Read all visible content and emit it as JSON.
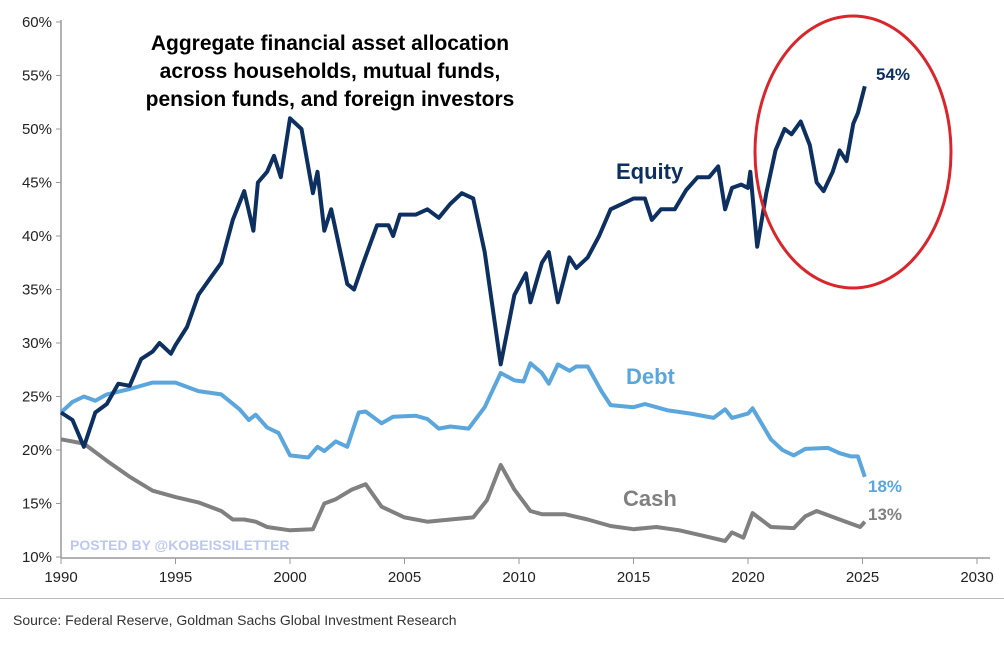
{
  "chart_data": {
    "type": "line",
    "title": "Aggregate financial asset allocation across households, mutual funds, pension funds, and foreign investors",
    "title_lines": [
      "Aggregate financial asset allocation",
      "across households, mutual funds,",
      "pension funds, and foreign investors"
    ],
    "xlabel": "",
    "ylabel": "",
    "xlim": [
      1990,
      2030
    ],
    "ylim": [
      10,
      60
    ],
    "x_ticks": [
      "1990",
      "1995",
      "2000",
      "2005",
      "2010",
      "2015",
      "2020",
      "2025",
      "2030"
    ],
    "y_ticks": [
      "10%",
      "15%",
      "20%",
      "25%",
      "30%",
      "35%",
      "40%",
      "45%",
      "50%",
      "55%",
      "60%"
    ],
    "grid": false,
    "series": [
      {
        "name": "Equity",
        "color": "#0d3060",
        "end_label": "54%",
        "points": [
          [
            1990,
            23.5
          ],
          [
            1990.5,
            22.8
          ],
          [
            1991,
            20.3
          ],
          [
            1991.5,
            23.5
          ],
          [
            1992,
            24.3
          ],
          [
            1992.5,
            26.2
          ],
          [
            1993,
            26
          ],
          [
            1993.5,
            28.5
          ],
          [
            1994,
            29.2
          ],
          [
            1994.3,
            30
          ],
          [
            1994.8,
            29
          ],
          [
            1995,
            29.8
          ],
          [
            1995.5,
            31.5
          ],
          [
            1996,
            34.5
          ],
          [
            1996.5,
            36
          ],
          [
            1997,
            37.5
          ],
          [
            1997.5,
            41.5
          ],
          [
            1998,
            44.2
          ],
          [
            1998.4,
            40.5
          ],
          [
            1998.6,
            45
          ],
          [
            1999,
            46
          ],
          [
            1999.3,
            47.5
          ],
          [
            1999.6,
            45.5
          ],
          [
            2000,
            51
          ],
          [
            2000.5,
            50
          ],
          [
            2001,
            44
          ],
          [
            2001.2,
            46
          ],
          [
            2001.5,
            40.5
          ],
          [
            2001.8,
            42.5
          ],
          [
            2002.5,
            35.5
          ],
          [
            2002.8,
            35
          ],
          [
            2003.2,
            37.5
          ],
          [
            2003.8,
            41
          ],
          [
            2004.3,
            41
          ],
          [
            2004.5,
            40
          ],
          [
            2004.8,
            42
          ],
          [
            2005.5,
            42
          ],
          [
            2006,
            42.5
          ],
          [
            2006.5,
            41.7
          ],
          [
            2007,
            43
          ],
          [
            2007.5,
            44
          ],
          [
            2008,
            43.5
          ],
          [
            2008.5,
            38.5
          ],
          [
            2009.2,
            28
          ],
          [
            2009.8,
            34.5
          ],
          [
            2010.3,
            36.5
          ],
          [
            2010.5,
            33.8
          ],
          [
            2011,
            37.5
          ],
          [
            2011.3,
            38.5
          ],
          [
            2011.7,
            33.8
          ],
          [
            2012.2,
            38
          ],
          [
            2012.5,
            37
          ],
          [
            2013,
            38
          ],
          [
            2013.5,
            40
          ],
          [
            2014,
            42.5
          ],
          [
            2014.5,
            43
          ],
          [
            2015,
            43.5
          ],
          [
            2015.5,
            43.5
          ],
          [
            2015.8,
            41.5
          ],
          [
            2016.2,
            42.5
          ],
          [
            2016.8,
            42.5
          ],
          [
            2017.3,
            44.3
          ],
          [
            2017.8,
            45.5
          ],
          [
            2018.3,
            45.5
          ],
          [
            2018.7,
            46.5
          ],
          [
            2019,
            42.5
          ],
          [
            2019.3,
            44.5
          ],
          [
            2019.7,
            44.8
          ],
          [
            2020,
            44.5
          ],
          [
            2020.1,
            46
          ],
          [
            2020.4,
            39
          ],
          [
            2020.8,
            44
          ],
          [
            2021.2,
            48
          ],
          [
            2021.6,
            50
          ],
          [
            2021.9,
            49.5
          ],
          [
            2022.3,
            50.7
          ],
          [
            2022.7,
            48.5
          ],
          [
            2023,
            45
          ],
          [
            2023.3,
            44.2
          ],
          [
            2023.7,
            46
          ],
          [
            2024,
            48
          ],
          [
            2024.3,
            47
          ],
          [
            2024.6,
            50.5
          ],
          [
            2024.8,
            51.5
          ],
          [
            2025.1,
            54
          ]
        ]
      },
      {
        "name": "Debt",
        "color": "#5aa6dd",
        "end_label": "18%",
        "points": [
          [
            1990,
            23.5
          ],
          [
            1990.5,
            24.5
          ],
          [
            1991,
            25
          ],
          [
            1991.5,
            24.6
          ],
          [
            1992,
            25.2
          ],
          [
            1993,
            25.7
          ],
          [
            1994,
            26.3
          ],
          [
            1995,
            26.3
          ],
          [
            1996,
            25.5
          ],
          [
            1997,
            25.2
          ],
          [
            1997.8,
            23.8
          ],
          [
            1998.2,
            22.8
          ],
          [
            1998.5,
            23.3
          ],
          [
            1999,
            22.1
          ],
          [
            1999.5,
            21.6
          ],
          [
            2000,
            19.5
          ],
          [
            2000.8,
            19.3
          ],
          [
            2001.2,
            20.3
          ],
          [
            2001.5,
            19.9
          ],
          [
            2002,
            20.8
          ],
          [
            2002.5,
            20.3
          ],
          [
            2003,
            23.5
          ],
          [
            2003.3,
            23.6
          ],
          [
            2004,
            22.5
          ],
          [
            2004.5,
            23.1
          ],
          [
            2005.5,
            23.2
          ],
          [
            2006,
            22.9
          ],
          [
            2006.5,
            22
          ],
          [
            2007,
            22.2
          ],
          [
            2007.8,
            22
          ],
          [
            2008.5,
            24
          ],
          [
            2009.2,
            27.2
          ],
          [
            2009.8,
            26.5
          ],
          [
            2010.2,
            26.4
          ],
          [
            2010.5,
            28.1
          ],
          [
            2011,
            27.2
          ],
          [
            2011.3,
            26.2
          ],
          [
            2011.7,
            28
          ],
          [
            2012.2,
            27.4
          ],
          [
            2012.5,
            27.8
          ],
          [
            2013,
            27.8
          ],
          [
            2013.6,
            25.5
          ],
          [
            2014,
            24.2
          ],
          [
            2015,
            24
          ],
          [
            2015.5,
            24.3
          ],
          [
            2016,
            24
          ],
          [
            2016.5,
            23.7
          ],
          [
            2017.5,
            23.4
          ],
          [
            2018.5,
            23
          ],
          [
            2019,
            23.8
          ],
          [
            2019.3,
            23
          ],
          [
            2020,
            23.4
          ],
          [
            2020.2,
            23.9
          ],
          [
            2021,
            21
          ],
          [
            2021.5,
            20
          ],
          [
            2022,
            19.5
          ],
          [
            2022.5,
            20.1
          ],
          [
            2023.5,
            20.2
          ],
          [
            2024,
            19.7
          ],
          [
            2024.5,
            19.4
          ],
          [
            2024.8,
            19.4
          ],
          [
            2025.1,
            17.5
          ]
        ]
      },
      {
        "name": "Cash",
        "color": "#808080",
        "end_label": "13%",
        "points": [
          [
            1990,
            21
          ],
          [
            1991,
            20.6
          ],
          [
            1992,
            19
          ],
          [
            1993,
            17.5
          ],
          [
            1994,
            16.2
          ],
          [
            1995,
            15.6
          ],
          [
            1996,
            15.1
          ],
          [
            1997,
            14.3
          ],
          [
            1997.5,
            13.5
          ],
          [
            1998,
            13.5
          ],
          [
            1998.5,
            13.3
          ],
          [
            1999,
            12.8
          ],
          [
            2000,
            12.5
          ],
          [
            2001,
            12.6
          ],
          [
            2001.5,
            15
          ],
          [
            2002,
            15.4
          ],
          [
            2002.7,
            16.3
          ],
          [
            2003.3,
            16.8
          ],
          [
            2004,
            14.7
          ],
          [
            2005,
            13.7
          ],
          [
            2006,
            13.3
          ],
          [
            2007,
            13.5
          ],
          [
            2008,
            13.7
          ],
          [
            2008.6,
            15.3
          ],
          [
            2009.2,
            18.6
          ],
          [
            2009.8,
            16.3
          ],
          [
            2010.5,
            14.3
          ],
          [
            2011,
            14
          ],
          [
            2012,
            14
          ],
          [
            2013,
            13.5
          ],
          [
            2014,
            12.9
          ],
          [
            2015,
            12.6
          ],
          [
            2016,
            12.8
          ],
          [
            2017,
            12.5
          ],
          [
            2018,
            12
          ],
          [
            2019,
            11.5
          ],
          [
            2019.3,
            12.3
          ],
          [
            2019.8,
            11.8
          ],
          [
            2020.2,
            14.1
          ],
          [
            2021,
            12.8
          ],
          [
            2022,
            12.7
          ],
          [
            2022.5,
            13.8
          ],
          [
            2023,
            14.3
          ],
          [
            2024,
            13.5
          ],
          [
            2024.9,
            12.8
          ],
          [
            2025.1,
            13.3
          ]
        ]
      }
    ],
    "annotations": [
      "POSTED BY @KOBEISSILETTER"
    ],
    "highlight": "red ellipse around 2020-2025 equity rise"
  },
  "source": "Source: Federal Reserve, Goldman Sachs Global Investment Research"
}
